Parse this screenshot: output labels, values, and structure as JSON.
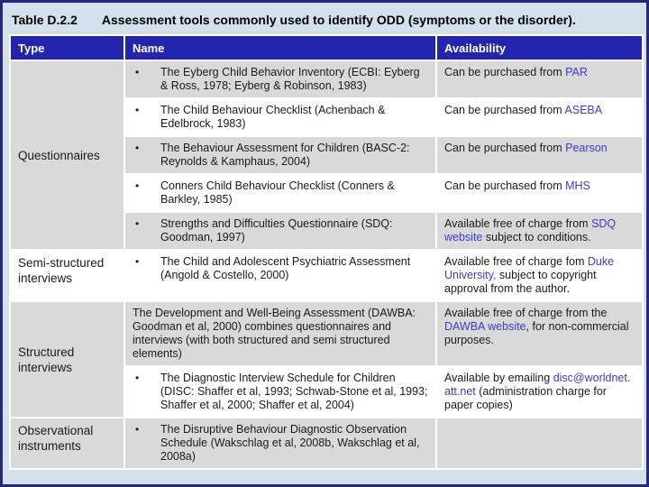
{
  "title": {
    "label": "Table D.2.2",
    "caption": "Assessment tools commonly used to identify ODD (symptoms or the disorder)."
  },
  "colors": {
    "frame_border": "#26267c",
    "page_background": "#d3e1eb",
    "header_background": "#2226ae",
    "header_text": "#ffffff",
    "row_gray": "#d9d9d9",
    "row_white": "#ffffff",
    "body_text": "#1a1a1a",
    "link": "#3a3cc8"
  },
  "table": {
    "headers": [
      "Type",
      "Name",
      "Availability"
    ],
    "rows": [
      {
        "group": {
          "label": "Questionnaires",
          "rowspan": 5
        },
        "bullet": true,
        "name": "The Eyberg Child Behavior Inventory (ECBI: Eyberg & Ross, 1978; Eyberg & Robinson, 1983)",
        "availability": [
          {
            "text": "Can be purchased from "
          },
          {
            "text": "PAR",
            "link": true
          }
        ]
      },
      {
        "bullet": true,
        "name": "The Child Behaviour Checklist (Achenbach & Edelbrock, 1983)",
        "availability": [
          {
            "text": "Can be purchased from "
          },
          {
            "text": "ASEBA",
            "link": true
          }
        ]
      },
      {
        "bullet": true,
        "name": "The Behaviour Assessment for Children (BASC-2: Reynolds & Kamphaus, 2004)",
        "availability": [
          {
            "text": "Can be purchased from "
          },
          {
            "text": "Pearson",
            "link": true
          }
        ]
      },
      {
        "bullet": true,
        "name": "Conners Child Behaviour Checklist (Conners & Barkley, 1985)",
        "availability": [
          {
            "text": "Can be purchased from "
          },
          {
            "text": "MHS",
            "link": true
          }
        ]
      },
      {
        "bullet": true,
        "name": "Strengths and Difficulties Questionnaire (SDQ: Goodman, 1997)",
        "availability": [
          {
            "text": "Available free of charge from "
          },
          {
            "text": "SDQ website",
            "link": true
          },
          {
            "text": " subject to conditions."
          }
        ]
      },
      {
        "group": {
          "label": "Semi-structured interviews",
          "rowspan": 1
        },
        "bullet": true,
        "name": "The Child and Adolescent Psychiatric Assessment (Angold & Costello, 2000)",
        "availability": [
          {
            "text": "Available free of charge fom "
          },
          {
            "text": "Duke University,",
            "link": true
          },
          {
            "text": " subject to copyright approval from the author."
          }
        ]
      },
      {
        "group": {
          "label": "Structured interviews",
          "rowspan": 2
        },
        "bullet": false,
        "name": "The Development and Well-Being Assessment (DAWBA: Goodman et al, 2000) combines questionnaires and interviews (with both structured and semi structured elements)",
        "availability": [
          {
            "text": "Available free of charge from the "
          },
          {
            "text": "DAWBA website",
            "link": true
          },
          {
            "text": ", for non-commercial purposes."
          }
        ]
      },
      {
        "bullet": true,
        "name": "The Diagnostic Interview Schedule for Children (DISC: Shaffer et al, 1993; Schwab-Stone et al, 1993; Shaffer et al, 2000; Shaffer et al, 2004)",
        "availability": [
          {
            "text": "Available by emailing "
          },
          {
            "text": "disc@worldnet.att.net",
            "link": true
          },
          {
            "text": " (administration charge for paper copies)"
          }
        ]
      },
      {
        "group": {
          "label": "Observational instruments",
          "rowspan": 1
        },
        "bullet": true,
        "name": "The Disruptive Behaviour Diagnostic Observation Schedule (Wakschlag et al, 2008b, Wakschlag et al, 2008a)",
        "availability": []
      }
    ],
    "bullet_glyph": "•"
  }
}
